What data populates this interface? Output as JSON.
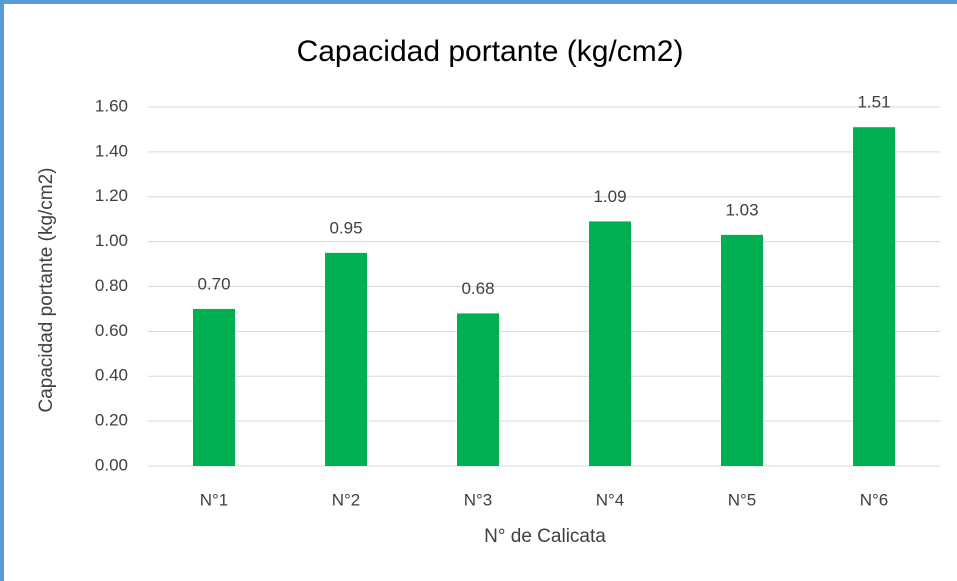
{
  "chart_data": {
    "type": "bar",
    "title": "Capacidad portante (kg/cm2)",
    "xlabel": "N° de Calicata",
    "ylabel": "Capacidad portante (kg/cm2)",
    "categories": [
      "N°1",
      "N°2",
      "N°3",
      "N°4",
      "N°5",
      "N°6"
    ],
    "values": [
      0.7,
      0.95,
      0.68,
      1.09,
      1.03,
      1.51
    ],
    "value_labels": [
      "0.70",
      "0.95",
      "0.68",
      "1.09",
      "1.03",
      "1.51"
    ],
    "color": "#00b050",
    "ylim": [
      0,
      1.6
    ],
    "yticks": [
      {
        "value": 0,
        "label": "0.00"
      },
      {
        "value": 0.2,
        "label": "0.20"
      },
      {
        "value": 0.4,
        "label": "0.40"
      },
      {
        "value": 0.6,
        "label": "0.60"
      },
      {
        "value": 0.8,
        "label": "0.80"
      },
      {
        "value": 1.0,
        "label": "1.00"
      },
      {
        "value": 1.2,
        "label": "1.20"
      },
      {
        "value": 1.4,
        "label": "1.40"
      },
      {
        "value": 1.6,
        "label": "1.60"
      }
    ],
    "grid": true
  }
}
